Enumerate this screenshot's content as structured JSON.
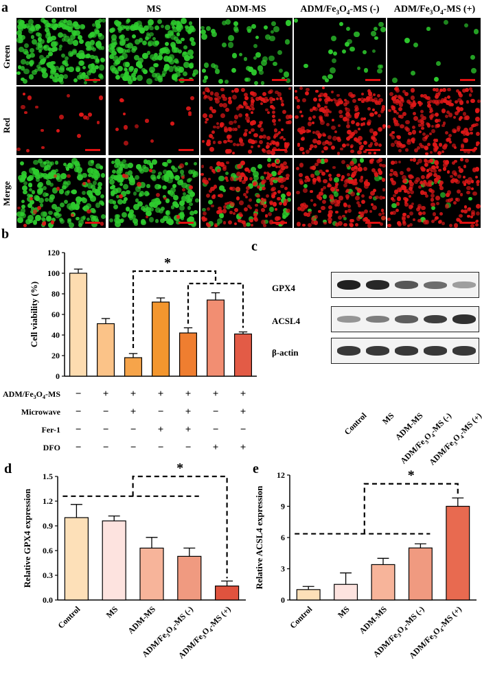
{
  "panel_labels": {
    "a": "a",
    "b": "b",
    "c": "c",
    "d": "d",
    "e": "e"
  },
  "panel_a": {
    "columns": [
      "Control",
      "MS",
      "ADM-MS",
      "ADM/Fe3O4-MS (-)",
      "ADM/Fe3O4-MS (+)"
    ],
    "rows": [
      "Green",
      "Red",
      "Merge"
    ],
    "density": {
      "green": [
        0.95,
        0.9,
        0.25,
        0.12,
        0.05
      ],
      "red": [
        0.08,
        0.06,
        0.75,
        0.8,
        0.9
      ]
    },
    "colors": {
      "green": "#2ecc2e",
      "red": "#e01818",
      "scale_bar": "#e01010"
    }
  },
  "panel_c": {
    "rows": [
      "GPX4",
      "ACSL4",
      "β-actin"
    ],
    "lanes": [
      "Control",
      "MS",
      "ADM-MS",
      "ADM/Fe3O4-MS (-)",
      "ADM/Fe3O4-MS (+)"
    ],
    "band_intensity": {
      "GPX4": [
        1.0,
        0.95,
        0.65,
        0.5,
        0.18
      ],
      "ACSL4": [
        0.25,
        0.4,
        0.6,
        0.8,
        0.9
      ],
      "β-actin": [
        0.85,
        0.85,
        0.85,
        0.85,
        0.85
      ]
    }
  },
  "chart_data": [
    {
      "id": "b",
      "type": "bar",
      "ylabel": "Cell viability (%)",
      "ylim": [
        0,
        120
      ],
      "yticks": [
        "0",
        "20",
        "40",
        "60",
        "80",
        "100",
        "120"
      ],
      "values": [
        100,
        51,
        18,
        72,
        42,
        74,
        41
      ],
      "errors": [
        4,
        5,
        4,
        4,
        5,
        7,
        2
      ],
      "colors": [
        "#fddcb0",
        "#fbc388",
        "#f6a44a",
        "#f3962e",
        "#ef7e30",
        "#f28e72",
        "#e35b46"
      ],
      "significance": "*",
      "conditions": [
        {
          "label": "ADM/Fe3O4-MS",
          "marks": [
            "−",
            "+",
            "+",
            "+",
            "+",
            "+",
            "+"
          ]
        },
        {
          "label": "Microwave",
          "marks": [
            "−",
            "−",
            "+",
            "−",
            "+",
            "−",
            "+"
          ]
        },
        {
          "label": "Fer-1",
          "marks": [
            "−",
            "−",
            "−",
            "+",
            "+",
            "−",
            "−"
          ]
        },
        {
          "label": "DFO",
          "marks": [
            "−",
            "−",
            "−",
            "−",
            "−",
            "+",
            "+"
          ]
        }
      ]
    },
    {
      "id": "d",
      "type": "bar",
      "ylabel": "Relative GPX4 expression",
      "ylim": [
        0,
        1.5
      ],
      "yticks": [
        "0.0",
        "0.3",
        "0.6",
        "0.9",
        "1.2",
        "1.5"
      ],
      "categories": [
        "Control",
        "MS",
        "ADM-MS",
        "ADM/Fe3O4-MS (-)",
        "ADM/Fe3O4-MS (+)"
      ],
      "values": [
        1.0,
        0.96,
        0.63,
        0.53,
        0.17
      ],
      "errors": [
        0.16,
        0.06,
        0.13,
        0.1,
        0.06
      ],
      "colors": [
        "#fde0b8",
        "#fde3df",
        "#f7b49a",
        "#f09a80",
        "#e0533e"
      ],
      "significance": "*"
    },
    {
      "id": "e",
      "type": "bar",
      "ylabel": "Relative ACSL4 expression",
      "ylim": [
        0,
        12
      ],
      "yticks": [
        "0",
        "3",
        "6",
        "9",
        "12"
      ],
      "categories": [
        "Control",
        "MS",
        "ADM-MS",
        "ADM/Fe3O4-MS (-)",
        "ADM/Fe3O4-MS (+)"
      ],
      "values": [
        1.0,
        1.5,
        3.4,
        5.0,
        9.0
      ],
      "errors": [
        0.3,
        1.1,
        0.6,
        0.4,
        0.8
      ],
      "colors": [
        "#fde0b8",
        "#fde3df",
        "#f7b49a",
        "#f09a80",
        "#e86a50"
      ],
      "significance": "*"
    }
  ]
}
